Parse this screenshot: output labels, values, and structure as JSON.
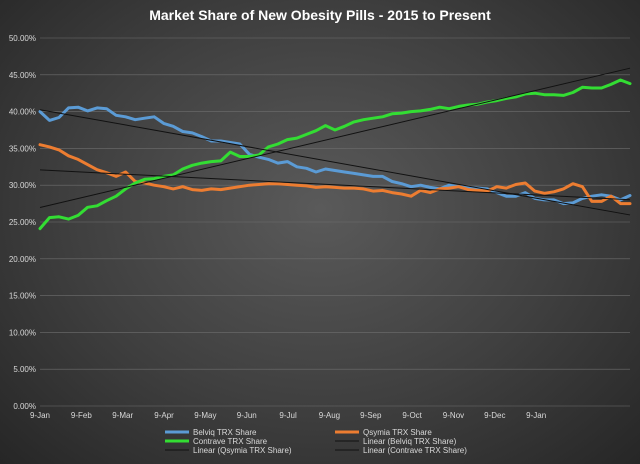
{
  "chart_data": {
    "type": "line",
    "title": "Market  Share  of New Obesity   Pills  - 2015 to Present",
    "xlabel": "",
    "ylabel": "",
    "ylim": [
      0,
      0.5
    ],
    "y_ticks": [
      "0.00%",
      "5.00%",
      "10.00%",
      "15.00%",
      "20.00%",
      "25.00%",
      "30.00%",
      "35.00%",
      "40.00%",
      "45.00%",
      "50.00%"
    ],
    "x_ticks": [
      "9-Jan",
      "9-Feb",
      "9-Mar",
      "9-Apr",
      "9-May",
      "9-Jun",
      "9-Jul",
      "9-Aug",
      "9-Sep",
      "9-Oct",
      "9-Nov",
      "9-Dec",
      "9-Jan"
    ],
    "grid": true,
    "legend_position": "bottom",
    "x_start": "2015-01-09",
    "x_step_days": 7,
    "series": [
      {
        "name": "Belviq TRX Share",
        "color": "#5b9bd5",
        "values": [
          0.4,
          0.388,
          0.392,
          0.405,
          0.406,
          0.401,
          0.405,
          0.404,
          0.395,
          0.393,
          0.389,
          0.391,
          0.393,
          0.384,
          0.38,
          0.373,
          0.371,
          0.366,
          0.36,
          0.36,
          0.358,
          0.356,
          0.342,
          0.338,
          0.335,
          0.33,
          0.332,
          0.325,
          0.323,
          0.318,
          0.322,
          0.32,
          0.318,
          0.316,
          0.314,
          0.312,
          0.312,
          0.305,
          0.302,
          0.298,
          0.3,
          0.297,
          0.295,
          0.3,
          0.298,
          0.297,
          0.296,
          0.295,
          0.29,
          0.285,
          0.285,
          0.29,
          0.282,
          0.28,
          0.28,
          0.275,
          0.276,
          0.282,
          0.285,
          0.287,
          0.285,
          0.28,
          0.286
        ]
      },
      {
        "name": "Qsymia TRX Share",
        "color": "#ed7d31",
        "values": [
          0.355,
          0.352,
          0.348,
          0.34,
          0.335,
          0.328,
          0.321,
          0.317,
          0.312,
          0.318,
          0.305,
          0.303,
          0.3,
          0.298,
          0.295,
          0.298,
          0.294,
          0.293,
          0.295,
          0.294,
          0.296,
          0.298,
          0.3,
          0.301,
          0.302,
          0.302,
          0.301,
          0.3,
          0.299,
          0.297,
          0.298,
          0.297,
          0.296,
          0.296,
          0.295,
          0.292,
          0.293,
          0.29,
          0.288,
          0.285,
          0.293,
          0.29,
          0.295,
          0.296,
          0.298,
          0.294,
          0.293,
          0.292,
          0.298,
          0.296,
          0.301,
          0.303,
          0.292,
          0.289,
          0.291,
          0.295,
          0.302,
          0.298,
          0.278,
          0.278,
          0.285,
          0.275,
          0.275
        ]
      },
      {
        "name": "Contrave TRX Share",
        "color": "#33dd33",
        "values": [
          0.241,
          0.256,
          0.257,
          0.254,
          0.259,
          0.27,
          0.272,
          0.279,
          0.285,
          0.295,
          0.303,
          0.308,
          0.309,
          0.312,
          0.314,
          0.322,
          0.327,
          0.33,
          0.332,
          0.333,
          0.345,
          0.339,
          0.339,
          0.341,
          0.352,
          0.356,
          0.362,
          0.364,
          0.369,
          0.374,
          0.381,
          0.375,
          0.38,
          0.386,
          0.389,
          0.391,
          0.393,
          0.397,
          0.398,
          0.4,
          0.401,
          0.403,
          0.406,
          0.404,
          0.407,
          0.409,
          0.41,
          0.413,
          0.415,
          0.418,
          0.42,
          0.424,
          0.425,
          0.423,
          0.423,
          0.422,
          0.426,
          0.433,
          0.432,
          0.432,
          0.437,
          0.443,
          0.438
        ]
      }
    ],
    "trendlines": [
      {
        "name": "Linear (Belviq TRX Share)",
        "series": "Belviq TRX Share"
      },
      {
        "name": "Linear (Qsymia TRX Share)",
        "series": "Qsymia TRX Share"
      },
      {
        "name": "Linear (Contrave TRX Share)",
        "series": "Contrave TRX Share"
      }
    ],
    "trendline_color": "#111111"
  }
}
